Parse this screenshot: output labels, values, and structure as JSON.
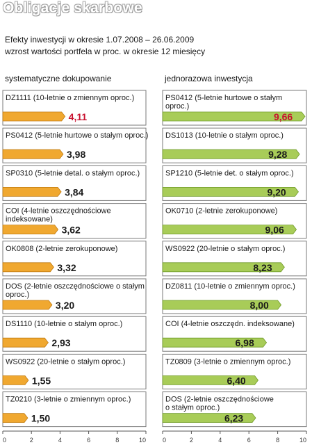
{
  "header": {
    "title": "Obligacje skarbowe",
    "subtitle_line1": "Efekty inwestycji w okresie 1.07.2008 – 26.06.2009",
    "subtitle_line2": "wzrost wartości portfela w proc. w okresie 12 miesięcy"
  },
  "colors": {
    "left_bar": "#f0a830",
    "left_bar_dark": "#c07a10",
    "right_bar": "#a8cc58",
    "right_bar_dark": "#6f9a28",
    "highlight_value": "#c8102e",
    "frame": "#7a7a7a"
  },
  "chart_data": [
    {
      "type": "bar",
      "orientation": "horizontal",
      "title": "systematyczne dokupowanie",
      "xlim": [
        0,
        10
      ],
      "xticks": [
        "0",
        "2",
        "4",
        "6",
        "8",
        "10"
      ],
      "categories": [
        "DZ1111 (10-letnie o zmiennym oproc.)",
        "PS0412 (5-letnie hurtowe o stałym oproc.)",
        "SP0310 (5-letnie detal. o stałym oproc.)",
        "COI (4-letnie oszczędnościowe indeksowane)",
        "OK0808 (2-letnie zerokuponowe)",
        "DOS (2-letnie oszczędnościowe o stałym oproc.)",
        "DS1110 (10-letnie o stałym oproc.)",
        "WS0922 (20-letnie o stałym oproc.)",
        "TZ0210 (3-letnie o zmiennym oproc.)"
      ],
      "label_lines": [
        [
          "DZ1111 (10-letnie o zmiennym oproc.)"
        ],
        [
          "PS0412 (5-letnie hurtowe o stałym oproc.)"
        ],
        [
          "SP0310 (5-letnie detal. o stałym oproc.)"
        ],
        [
          "COI (4-letnie oszczędnościowe",
          "indeksowane)"
        ],
        [
          "OK0808 (2-letnie zerokuponowe)"
        ],
        [
          "DOS (2-letnie oszczędnościowe o stałym",
          "oproc.)"
        ],
        [
          "DS1110 (10-letnie o stałym oproc.)"
        ],
        [
          "WS0922 (20-letnie o stałym oproc.)"
        ],
        [
          "TZ0210 (3-letnie o zmiennym oproc.)"
        ]
      ],
      "values": [
        4.11,
        3.98,
        3.84,
        3.62,
        3.32,
        3.2,
        2.93,
        1.55,
        1.5
      ],
      "value_labels": [
        "4,11",
        "3,98",
        "3,84",
        "3,62",
        "3,32",
        "3,20",
        "2,93",
        "1,55",
        "1,50"
      ],
      "highlight_index": 0
    },
    {
      "type": "bar",
      "orientation": "horizontal",
      "title": "jednorazowa inwestycja",
      "xlim": [
        0,
        10
      ],
      "xticks": [
        "0",
        "2",
        "4",
        "6",
        "8",
        "10"
      ],
      "categories": [
        "PS0412 (5-letnie hurtowe o stałym oproc.)",
        "DS1013 (10-letnie o stałym oproc.)",
        "SP1210 (5-letnie det. o stałym oproc.)",
        "OK0710 (2-letnie zerokuponowe)",
        "WS0922 (20-letnie o stałym oproc.)",
        "DZ0811 (10-letnie o zmiennym oproc.)",
        "COI (4-letnie oszczędn. indeksowane)",
        "TZ0809 (3-letnie o zmiennym oproc.)",
        "DOS (2-letnie oszczędnościowe o stałym oproc.)"
      ],
      "label_lines": [
        [
          "PS0412 (5-letnie hurtowe o stałym",
          "oproc.)"
        ],
        [
          "DS1013 (10-letnie o stałym oproc.)"
        ],
        [
          "SP1210 (5-letnie det. o stałym oproc.)"
        ],
        [
          "OK0710 (2-letnie zerokuponowe)"
        ],
        [
          "WS0922 (20-letnie o stałym oproc.)"
        ],
        [
          "DZ0811 (10-letnie o zmiennym oproc.)"
        ],
        [
          "COI (4-letnie oszczędn. indeksowane)"
        ],
        [
          "TZ0809 (3-letnie o zmiennym oproc.)"
        ],
        [
          "DOS (2-letnie oszczędnościowe",
          "o stałym oproc.)"
        ]
      ],
      "values": [
        9.66,
        9.28,
        9.2,
        9.06,
        8.23,
        8.0,
        6.98,
        6.4,
        6.23
      ],
      "value_labels": [
        "9,66",
        "9,28",
        "9,20",
        "9,06",
        "8,23",
        "8,00",
        "6,98",
        "6,40",
        "6,23"
      ],
      "highlight_index": 0
    }
  ]
}
